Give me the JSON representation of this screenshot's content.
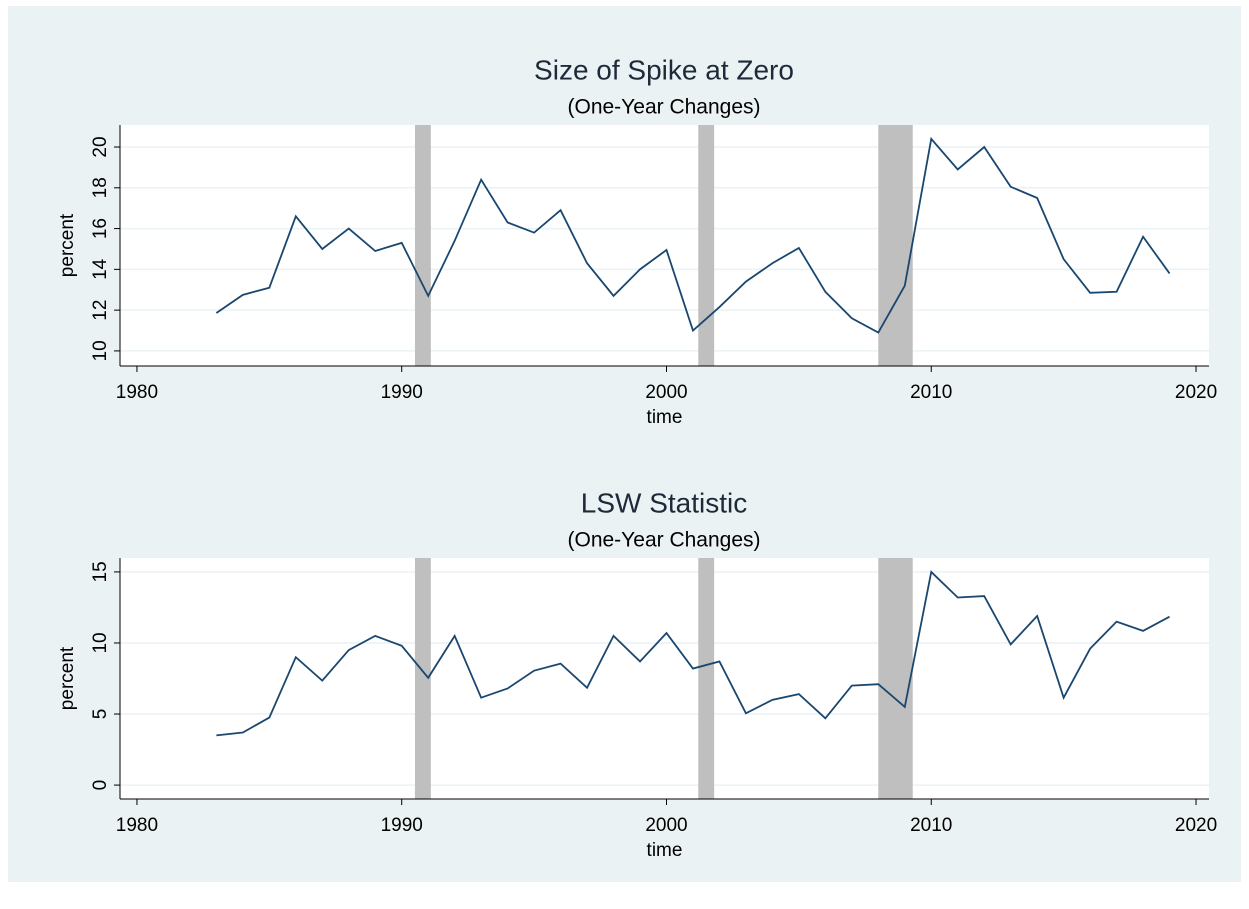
{
  "chart_data": [
    {
      "type": "line",
      "title": "Size of Spike at Zero",
      "subtitle": "(One-Year Changes)",
      "xlabel": "time",
      "ylabel": "percent",
      "x": [
        1983,
        1984,
        1985,
        1986,
        1987,
        1988,
        1989,
        1990,
        1991,
        1992,
        1993,
        1994,
        1995,
        1996,
        1997,
        1998,
        1999,
        2000,
        2001,
        2002,
        2003,
        2004,
        2005,
        2006,
        2007,
        2008,
        2009,
        2010,
        2011,
        2012,
        2013,
        2014,
        2015,
        2016,
        2017,
        2018,
        2019
      ],
      "values": [
        11.86,
        12.75,
        13.1,
        16.6,
        15.0,
        16.0,
        14.9,
        15.3,
        12.7,
        15.4,
        18.4,
        16.3,
        15.8,
        16.9,
        14.3,
        12.7,
        14.0,
        14.95,
        11.0,
        12.15,
        13.4,
        14.3,
        15.05,
        12.9,
        11.6,
        10.9,
        13.2,
        20.4,
        18.9,
        20.0,
        18.05,
        17.5,
        14.5,
        12.85,
        12.9,
        15.6,
        13.8
      ],
      "color": "#1a476f",
      "shaded": [
        [
          1990.5,
          1991.1
        ],
        [
          2001.2,
          2001.8
        ],
        [
          2008.0,
          2009.3
        ]
      ],
      "shade_color": "#bfbfbf",
      "xlim": [
        1979.36,
        2020.49
      ],
      "xticks": [
        1980,
        1990,
        2000,
        2010,
        2020
      ],
      "ylim": [
        9.26,
        21.08
      ],
      "yticks": [
        10,
        12,
        14,
        16,
        18,
        20
      ],
      "grid": true
    },
    {
      "type": "line",
      "title": "LSW Statistic",
      "subtitle": "(One-Year Changes)",
      "xlabel": "time",
      "ylabel": "percent",
      "x": [
        1983,
        1984,
        1985,
        1986,
        1987,
        1988,
        1989,
        1990,
        1991,
        1992,
        1993,
        1994,
        1995,
        1996,
        1997,
        1998,
        1999,
        2000,
        2001,
        2002,
        2003,
        2004,
        2005,
        2006,
        2007,
        2008,
        2009,
        2010,
        2011,
        2012,
        2013,
        2014,
        2015,
        2016,
        2017,
        2018,
        2019
      ],
      "values": [
        3.5,
        3.7,
        4.75,
        9.0,
        7.35,
        9.5,
        10.5,
        9.8,
        7.55,
        10.5,
        6.15,
        6.8,
        8.05,
        8.55,
        6.85,
        10.5,
        8.7,
        10.7,
        8.2,
        8.7,
        5.05,
        6.0,
        6.4,
        4.7,
        7.0,
        7.1,
        5.5,
        15.0,
        13.2,
        13.3,
        9.9,
        11.9,
        6.15,
        9.6,
        11.5,
        10.85,
        11.85
      ],
      "color": "#1a476f",
      "shaded": [
        [
          1990.5,
          1991.1
        ],
        [
          2001.2,
          2001.8
        ],
        [
          2008.0,
          2009.3
        ]
      ],
      "shade_color": "#bfbfbf",
      "xlim": [
        1979.36,
        2020.49
      ],
      "xticks": [
        1980,
        1990,
        2000,
        2010,
        2020
      ],
      "ylim": [
        -0.98,
        15.98
      ],
      "yticks": [
        0,
        5,
        10,
        15
      ],
      "grid": true
    }
  ]
}
